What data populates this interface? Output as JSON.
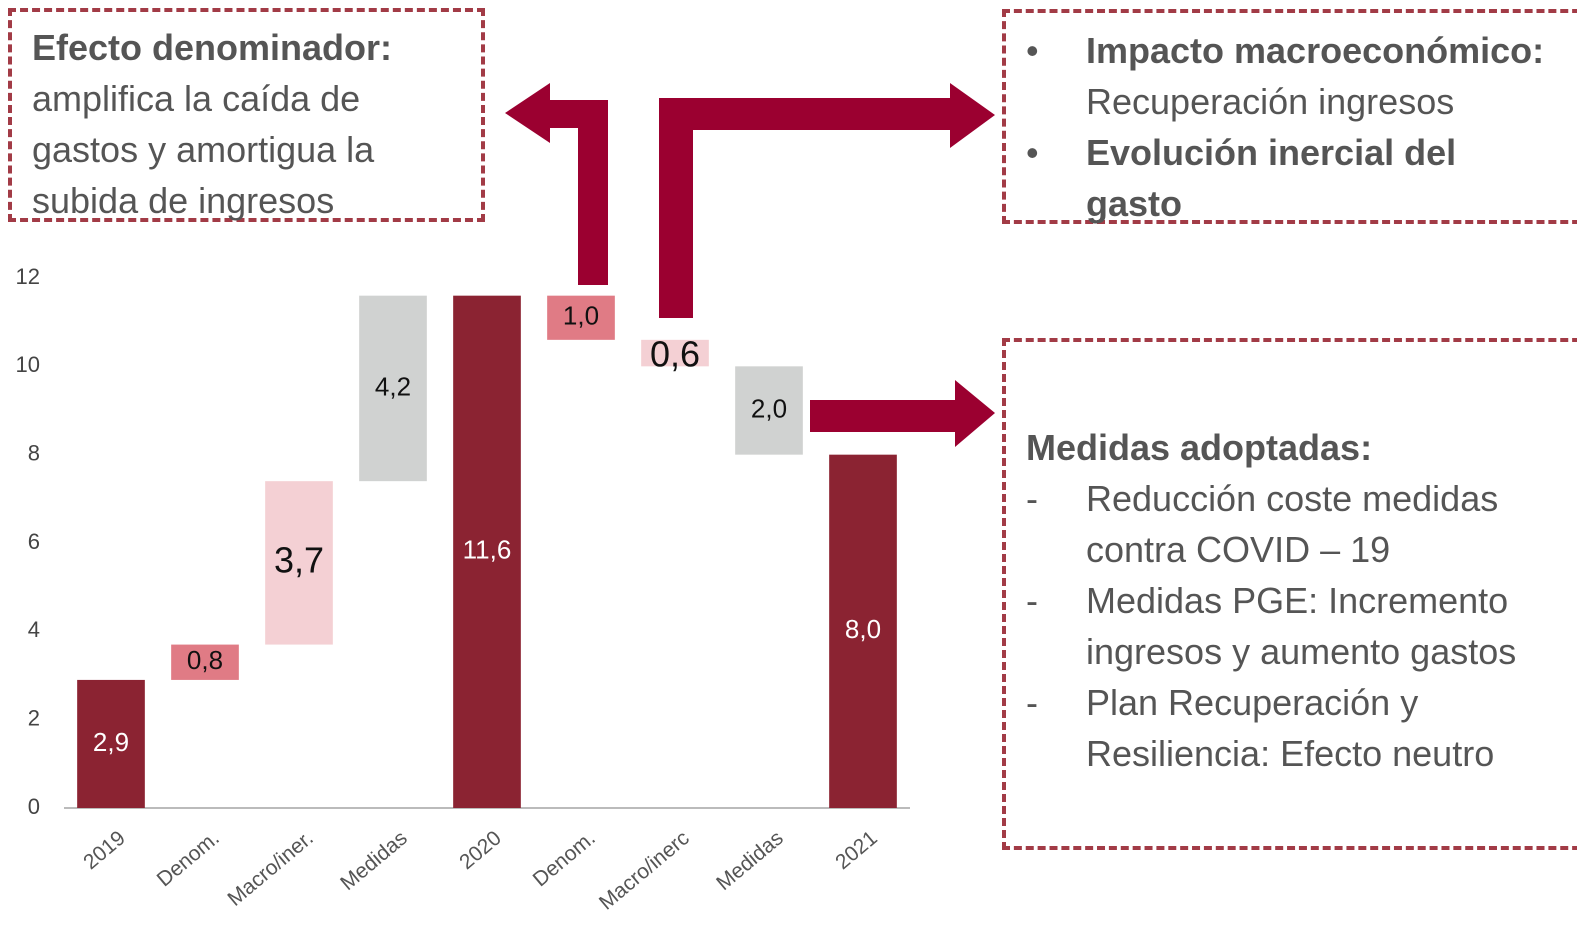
{
  "chart_data": {
    "type": "waterfall",
    "categories": [
      "2019",
      "Denom.",
      "Macro/iner.",
      "Medidas",
      "2020",
      "Denom.",
      "Macro/inerc",
      "Medidas",
      "2021"
    ],
    "values": [
      2.9,
      0.8,
      3.7,
      4.2,
      11.6,
      -1.0,
      -0.6,
      -2.0,
      8.0
    ],
    "value_labels": [
      "2,9",
      "0,8",
      "3,7",
      "4,2",
      "11,6",
      "1,0",
      "0,6",
      "2,0",
      "8,0"
    ],
    "measure": [
      "absolute",
      "relative",
      "relative",
      "relative",
      "absolute",
      "relative",
      "relative",
      "relative",
      "absolute"
    ],
    "colors": [
      "#8b2332",
      "#e07b85",
      "#f4d0d4",
      "#d0d2d1",
      "#8b2332",
      "#e07b85",
      "#f4d0d4",
      "#d0d2d1",
      "#8b2332"
    ],
    "ylim": [
      0,
      12
    ],
    "yticks": [
      0,
      2,
      4,
      6,
      8,
      10,
      12
    ]
  },
  "notes": [
    {
      "title": "Efecto denominador:",
      "lines": [
        "amplifica la caída de",
        "gastos y amortigua la",
        "subida de ingresos"
      ]
    },
    {
      "items": [
        {
          "title": "Impacto macroeconómico:",
          "text": "Recuperación ingresos"
        },
        {
          "title": "Evolución inercial del gasto"
        }
      ]
    },
    {
      "title": "Medidas adoptadas:",
      "items": [
        "Reducción coste medidas contra COVID – 19",
        "Medidas PGE: Incremento ingresos y aumento gastos",
        "Plan Recuperación y Resiliencia: Efecto neutro"
      ]
    }
  ]
}
